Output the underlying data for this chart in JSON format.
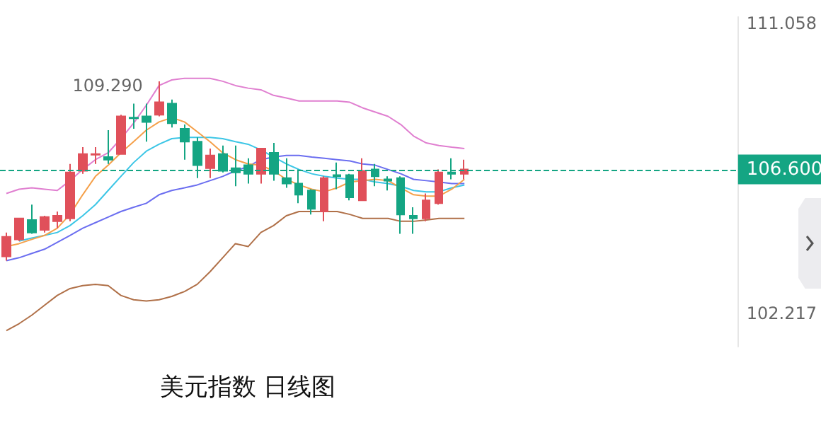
{
  "chart_data": {
    "type": "candlestick",
    "title": "美元指数 日线图",
    "categories": [
      null,
      null,
      null,
      null,
      null,
      null,
      null,
      null,
      null,
      null,
      null,
      null,
      null,
      null,
      null,
      null,
      null,
      null,
      null,
      null,
      null,
      null,
      null,
      null,
      null,
      null,
      null,
      null,
      null,
      null,
      null,
      null,
      null,
      null,
      null,
      null,
      null
    ],
    "ylim": [
      101.2,
      111.25
    ],
    "yticks": [
      102.217,
      111.058
    ],
    "grid": false,
    "tick_labels": "y",
    "ref_lines": [
      {
        "axis": "y",
        "value": 106.6,
        "label": "106.600",
        "color": "#14a583",
        "line_style": "dashed"
      }
    ],
    "annotations": [
      "109.290"
    ],
    "series": [
      {
        "colors": [
          "#e0505a",
          "#e0505a",
          "#14a583",
          "#e0505a",
          "#e0505a",
          "#e0505a",
          "#e0505a",
          "#e0505a",
          "#14a583",
          "#e0505a",
          "#14a583",
          "#14a583",
          "#e0505a",
          "#14a583",
          "#14a583",
          "#14a583",
          "#e0505a",
          "#14a583",
          "#14a583",
          "#14a583",
          "#e0505a",
          "#14a583",
          "#14a583",
          "#14a583",
          "#14a583",
          "#e0505a",
          "#14a583",
          "#14a583",
          "#e0505a",
          "#14a583",
          "#14a583",
          "#14a583",
          "#14a583",
          "#e0505a",
          "#e0505a",
          "#14a583",
          "#e0505a"
        ],
        "ohlc": [
          [
            103.95,
            104.68,
            103.82,
            104.55
          ],
          [
            104.47,
            105.13,
            104.42,
            105.11
          ],
          [
            105.06,
            105.53,
            104.64,
            104.68
          ],
          [
            104.76,
            105.19,
            104.68,
            105.15
          ],
          [
            105.02,
            105.32,
            104.81,
            105.19
          ],
          [
            105.11,
            106.77,
            105.02,
            106.51
          ],
          [
            106.56,
            107.28,
            106.47,
            107.07
          ],
          [
            107.05,
            107.28,
            106.77,
            107.07
          ],
          [
            106.98,
            107.8,
            106.77,
            106.9
          ],
          [
            107.07,
            108.27,
            107.07,
            108.22
          ],
          [
            108.18,
            108.61,
            107.84,
            108.16
          ],
          [
            108.22,
            108.61,
            107.45,
            108.05
          ],
          [
            108.27,
            109.29,
            108.22,
            108.65
          ],
          [
            108.61,
            108.73,
            107.88,
            108.01
          ],
          [
            107.84,
            107.97,
            106.9,
            107.45
          ],
          [
            107.45,
            107.58,
            106.34,
            106.73
          ],
          [
            106.64,
            107.24,
            106.34,
            107.03
          ],
          [
            107.07,
            107.33,
            106.51,
            106.56
          ],
          [
            106.64,
            107.33,
            106.09,
            106.51
          ],
          [
            106.73,
            106.94,
            106.17,
            106.47
          ],
          [
            106.47,
            107.24,
            106.17,
            107.24
          ],
          [
            107.11,
            107.41,
            106.26,
            106.47
          ],
          [
            106.34,
            106.94,
            106.04,
            106.17
          ],
          [
            106.17,
            106.6,
            105.57,
            105.83
          ],
          [
            105.96,
            106.0,
            105.23,
            105.4
          ],
          [
            105.32,
            106.39,
            105.02,
            106.34
          ],
          [
            106.43,
            106.81,
            106.0,
            106.39
          ],
          [
            106.43,
            106.47,
            105.66,
            105.75
          ],
          [
            105.66,
            106.94,
            105.66,
            106.56
          ],
          [
            106.6,
            106.77,
            106.09,
            106.39
          ],
          [
            106.3,
            106.39,
            105.96,
            106.26
          ],
          [
            106.34,
            106.39,
            104.64,
            105.23
          ],
          [
            105.19,
            105.45,
            104.64,
            105.11
          ],
          [
            105.11,
            105.87,
            105.02,
            105.66
          ],
          [
            105.57,
            106.6,
            105.53,
            106.51
          ],
          [
            106.51,
            106.94,
            106.3,
            106.47
          ],
          [
            106.47,
            106.9,
            106.3,
            106.6
          ]
        ]
      },
      {
        "type": "line",
        "color": "#e07fd0",
        "values": [
          105.87,
          106.0,
          106.04,
          106.0,
          105.96,
          106.26,
          106.6,
          106.9,
          107.11,
          107.54,
          108.01,
          108.56,
          109.16,
          109.33,
          109.38,
          109.38,
          109.38,
          109.29,
          109.16,
          109.08,
          109.03,
          108.86,
          108.78,
          108.69,
          108.69,
          108.69,
          108.69,
          108.65,
          108.48,
          108.35,
          108.22,
          107.97,
          107.62,
          107.41,
          107.33,
          107.28,
          107.24
        ]
      },
      {
        "type": "line",
        "color": "#6b6ef0",
        "values": [
          103.82,
          103.91,
          104.04,
          104.17,
          104.38,
          104.59,
          104.81,
          104.98,
          105.15,
          105.32,
          105.45,
          105.57,
          105.83,
          105.96,
          106.04,
          106.13,
          106.26,
          106.39,
          106.56,
          106.69,
          106.9,
          106.98,
          107.03,
          107.03,
          106.98,
          106.94,
          106.9,
          106.86,
          106.77,
          106.73,
          106.6,
          106.47,
          106.3,
          106.26,
          106.22,
          106.17,
          106.17
        ]
      },
      {
        "type": "line",
        "color": "#b07048",
        "values": [
          101.69,
          101.9,
          102.16,
          102.46,
          102.76,
          102.97,
          103.06,
          103.1,
          103.06,
          102.76,
          102.63,
          102.59,
          102.63,
          102.73,
          102.88,
          103.1,
          103.48,
          103.91,
          104.34,
          104.25,
          104.68,
          104.89,
          105.19,
          105.32,
          105.32,
          105.32,
          105.32,
          105.23,
          105.11,
          105.11,
          105.11,
          105.02,
          105.02,
          105.06,
          105.11,
          105.11,
          105.11
        ]
      },
      {
        "type": "line",
        "color": "#3cc6e6",
        "values": [
          null,
          104.42,
          104.51,
          104.59,
          104.68,
          104.89,
          105.19,
          105.53,
          105.96,
          106.39,
          106.81,
          107.16,
          107.37,
          107.54,
          107.58,
          107.58,
          107.58,
          107.54,
          107.45,
          107.37,
          107.2,
          106.98,
          106.77,
          106.6,
          106.47,
          106.39,
          106.34,
          106.3,
          106.3,
          106.22,
          106.17,
          106.09,
          105.96,
          105.92,
          105.92,
          106.04,
          106.13
        ]
      },
      {
        "type": "line",
        "color": "#f5a04a",
        "values": [
          104.25,
          104.34,
          104.47,
          104.59,
          104.81,
          105.23,
          105.83,
          106.39,
          106.73,
          107.11,
          107.45,
          107.8,
          108.05,
          108.18,
          108.05,
          107.75,
          107.45,
          107.11,
          106.9,
          106.77,
          106.73,
          106.56,
          106.3,
          106.13,
          106.0,
          105.92,
          106.04,
          106.22,
          106.26,
          106.3,
          106.26,
          106.04,
          105.83,
          105.79,
          105.79,
          106.0,
          106.3
        ]
      }
    ]
  }
}
